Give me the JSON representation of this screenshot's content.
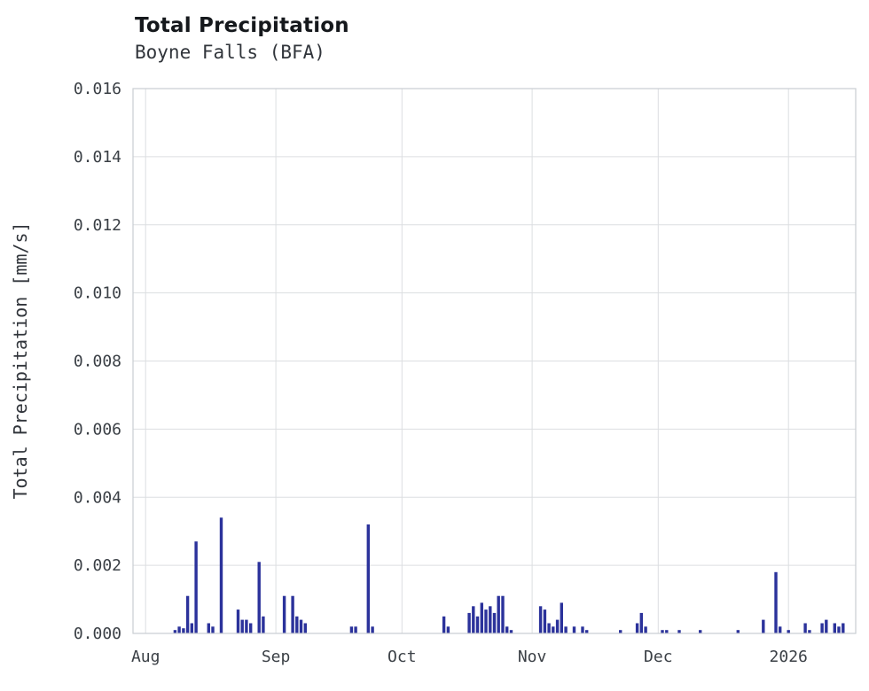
{
  "header": {
    "title": "Total Precipitation",
    "subtitle": "Boyne Falls (BFA)"
  },
  "colors": {
    "bar": "#2b329b",
    "grid": "#dcdee1",
    "frame": "#c9cdd2",
    "text": "#3a3f45",
    "title": "#15181c",
    "background": "#ffffff"
  },
  "chart_data": {
    "type": "bar",
    "title": "Total Precipitation",
    "subtitle": "Boyne Falls (BFA)",
    "station": "Boyne Falls (BFA)",
    "xlabel": "",
    "ylabel": "Total Precipitation [mm/s]",
    "ylim": [
      0,
      0.016
    ],
    "ytick_values": [
      0.0,
      0.002,
      0.004,
      0.006,
      0.008,
      0.01,
      0.012,
      0.014,
      0.016
    ],
    "ytick_labels": [
      "0.000",
      "0.002",
      "0.004",
      "0.006",
      "0.008",
      "0.010",
      "0.012",
      "0.014",
      "0.016"
    ],
    "x_unit": "days since Aug 1",
    "x_range_days": [
      -3,
      169
    ],
    "xtick_positions_days": [
      0,
      31,
      61,
      92,
      122,
      153
    ],
    "xtick_labels": [
      "Aug",
      "Sep",
      "Oct",
      "Nov",
      "Dec",
      "2026"
    ],
    "grid": true,
    "legend": false,
    "series": [
      {
        "name": "Total Precipitation",
        "color": "#2b329b",
        "points": [
          [
            7,
            0.0001
          ],
          [
            8,
            0.0002
          ],
          [
            9,
            0.00015
          ],
          [
            10,
            0.0011
          ],
          [
            11,
            0.0003
          ],
          [
            12,
            0.0027
          ],
          [
            15,
            0.0003
          ],
          [
            16,
            0.0002
          ],
          [
            18,
            0.0034
          ],
          [
            22,
            0.0007
          ],
          [
            23,
            0.0004
          ],
          [
            24,
            0.0004
          ],
          [
            25,
            0.0003
          ],
          [
            27,
            0.0021
          ],
          [
            28,
            0.0005
          ],
          [
            33,
            0.0011
          ],
          [
            35,
            0.0011
          ],
          [
            36,
            0.0005
          ],
          [
            37,
            0.0004
          ],
          [
            38,
            0.0003
          ],
          [
            49,
            0.0002
          ],
          [
            50,
            0.0002
          ],
          [
            53,
            0.0032
          ],
          [
            54,
            0.0002
          ],
          [
            71,
            0.0005
          ],
          [
            72,
            0.0002
          ],
          [
            77,
            0.0006
          ],
          [
            78,
            0.0008
          ],
          [
            79,
            0.0005
          ],
          [
            80,
            0.0009
          ],
          [
            81,
            0.0007
          ],
          [
            82,
            0.0008
          ],
          [
            83,
            0.0006
          ],
          [
            84,
            0.0011
          ],
          [
            85,
            0.0011
          ],
          [
            86,
            0.0002
          ],
          [
            87,
            0.0001
          ],
          [
            94,
            0.0008
          ],
          [
            95,
            0.0007
          ],
          [
            96,
            0.0003
          ],
          [
            97,
            0.0002
          ],
          [
            98,
            0.0004
          ],
          [
            99,
            0.0009
          ],
          [
            100,
            0.0002
          ],
          [
            102,
            0.0002
          ],
          [
            104,
            0.0002
          ],
          [
            105,
            0.0001
          ],
          [
            113,
            0.0001
          ],
          [
            117,
            0.0003
          ],
          [
            118,
            0.0006
          ],
          [
            119,
            0.0002
          ],
          [
            123,
            0.0001
          ],
          [
            124,
            0.0001
          ],
          [
            127,
            0.0001
          ],
          [
            132,
            0.0001
          ],
          [
            141,
            0.0001
          ],
          [
            147,
            0.0004
          ],
          [
            150,
            0.0018
          ],
          [
            151,
            0.0002
          ],
          [
            153,
            0.0001
          ],
          [
            157,
            0.0003
          ],
          [
            158,
            0.0001
          ],
          [
            161,
            0.0003
          ],
          [
            162,
            0.0004
          ],
          [
            164,
            0.0003
          ],
          [
            165,
            0.0002
          ],
          [
            166,
            0.0003
          ]
        ]
      }
    ]
  }
}
